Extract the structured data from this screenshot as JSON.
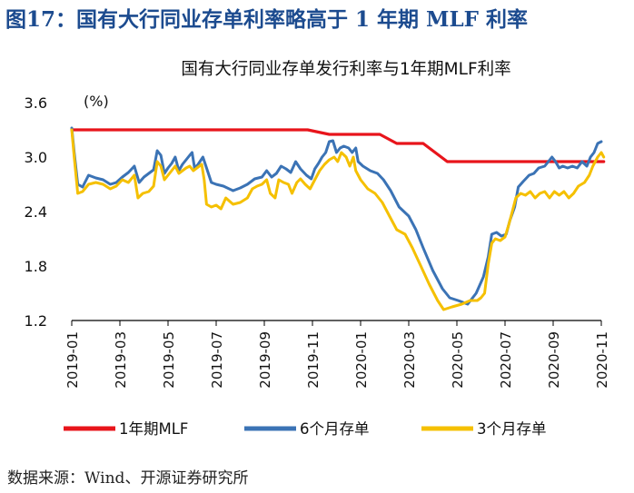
{
  "figure": {
    "title": "图17：国有大行同业存单利率略高于 1 年期 MLF 利率",
    "source": "数据来源：Wind、开源证券研究所"
  },
  "chart_data": {
    "type": "line",
    "title": "国有大行同业存单发行利率与1年期MLF利率",
    "unit_label": "(%)",
    "ylim": [
      1.2,
      3.6
    ],
    "yticks": [
      "1.2",
      "1.8",
      "2.4",
      "3.0",
      "3.6"
    ],
    "x_range": [
      "2019-01",
      "2020-11"
    ],
    "xticks": [
      "2019-01",
      "2019-03",
      "2019-05",
      "2019-07",
      "2019-09",
      "2019-11",
      "2020-01",
      "2020-03",
      "2020-05",
      "2020-07",
      "2020-09",
      "2020-11"
    ],
    "legend_position": "bottom",
    "series": [
      {
        "name": "1年期MLF",
        "color": "#e8141b",
        "points": [
          [
            0,
            3.3
          ],
          [
            9.8,
            3.3
          ],
          [
            10.7,
            3.25
          ],
          [
            12.8,
            3.25
          ],
          [
            13.5,
            3.15
          ],
          [
            14.6,
            3.15
          ],
          [
            15.6,
            2.95
          ],
          [
            22.1,
            2.95
          ]
        ]
      },
      {
        "name": "6个月存单",
        "color": "#3b73b5",
        "points": [
          [
            0,
            3.32
          ],
          [
            0.1,
            3.05
          ],
          [
            0.25,
            2.7
          ],
          [
            0.45,
            2.67
          ],
          [
            0.7,
            2.8
          ],
          [
            1.0,
            2.77
          ],
          [
            1.3,
            2.75
          ],
          [
            1.6,
            2.7
          ],
          [
            1.85,
            2.72
          ],
          [
            2.1,
            2.78
          ],
          [
            2.35,
            2.83
          ],
          [
            2.6,
            2.9
          ],
          [
            2.8,
            2.72
          ],
          [
            3.0,
            2.78
          ],
          [
            3.2,
            2.82
          ],
          [
            3.4,
            2.86
          ],
          [
            3.55,
            3.07
          ],
          [
            3.7,
            3.02
          ],
          [
            3.85,
            2.82
          ],
          [
            4.0,
            2.88
          ],
          [
            4.15,
            2.93
          ],
          [
            4.3,
            3.0
          ],
          [
            4.45,
            2.85
          ],
          [
            4.6,
            2.92
          ],
          [
            4.75,
            2.97
          ],
          [
            4.9,
            3.02
          ],
          [
            5.0,
            3.05
          ],
          [
            5.1,
            2.88
          ],
          [
            5.25,
            2.92
          ],
          [
            5.45,
            3.0
          ],
          [
            5.6,
            2.88
          ],
          [
            5.8,
            2.72
          ],
          [
            6.0,
            2.7
          ],
          [
            6.3,
            2.68
          ],
          [
            6.7,
            2.63
          ],
          [
            7.0,
            2.66
          ],
          [
            7.3,
            2.7
          ],
          [
            7.6,
            2.76
          ],
          [
            7.9,
            2.78
          ],
          [
            8.1,
            2.85
          ],
          [
            8.3,
            2.78
          ],
          [
            8.5,
            2.82
          ],
          [
            8.7,
            2.9
          ],
          [
            8.9,
            2.87
          ],
          [
            9.1,
            2.83
          ],
          [
            9.3,
            2.95
          ],
          [
            9.5,
            2.87
          ],
          [
            9.75,
            2.8
          ],
          [
            9.95,
            2.76
          ],
          [
            10.1,
            2.87
          ],
          [
            10.25,
            2.93
          ],
          [
            10.4,
            3.0
          ],
          [
            10.55,
            3.05
          ],
          [
            10.7,
            3.17
          ],
          [
            10.85,
            3.18
          ],
          [
            11.0,
            3.05
          ],
          [
            11.15,
            3.1
          ],
          [
            11.3,
            3.12
          ],
          [
            11.5,
            3.1
          ],
          [
            11.65,
            3.05
          ],
          [
            11.8,
            3.1
          ],
          [
            11.9,
            2.95
          ],
          [
            12.1,
            2.9
          ],
          [
            12.4,
            2.85
          ],
          [
            12.7,
            2.82
          ],
          [
            12.95,
            2.75
          ],
          [
            13.25,
            2.63
          ],
          [
            13.6,
            2.45
          ],
          [
            14.0,
            2.35
          ],
          [
            14.3,
            2.2
          ],
          [
            14.6,
            2.0
          ],
          [
            15.0,
            1.75
          ],
          [
            15.4,
            1.55
          ],
          [
            15.7,
            1.45
          ],
          [
            16.05,
            1.42
          ],
          [
            16.45,
            1.38
          ],
          [
            16.8,
            1.5
          ],
          [
            17.1,
            1.68
          ],
          [
            17.3,
            1.9
          ],
          [
            17.45,
            2.15
          ],
          [
            17.65,
            2.17
          ],
          [
            17.85,
            2.13
          ],
          [
            18.05,
            2.15
          ],
          [
            18.2,
            2.3
          ],
          [
            18.4,
            2.45
          ],
          [
            18.55,
            2.67
          ],
          [
            18.75,
            2.73
          ],
          [
            19.0,
            2.8
          ],
          [
            19.2,
            2.82
          ],
          [
            19.4,
            2.88
          ],
          [
            19.65,
            2.9
          ],
          [
            19.8,
            2.95
          ],
          [
            19.95,
            3.0
          ],
          [
            20.1,
            2.95
          ],
          [
            20.25,
            2.88
          ],
          [
            20.4,
            2.9
          ],
          [
            20.6,
            2.88
          ],
          [
            20.8,
            2.9
          ],
          [
            21.0,
            2.88
          ],
          [
            21.2,
            2.95
          ],
          [
            21.4,
            2.9
          ],
          [
            21.55,
            3.0
          ],
          [
            21.7,
            3.05
          ],
          [
            21.85,
            3.15
          ],
          [
            22.0,
            3.17
          ]
        ]
      },
      {
        "name": "3个月存单",
        "color": "#f5c000",
        "points": [
          [
            0,
            3.3
          ],
          [
            0.1,
            3.0
          ],
          [
            0.25,
            2.6
          ],
          [
            0.45,
            2.62
          ],
          [
            0.7,
            2.7
          ],
          [
            1.0,
            2.72
          ],
          [
            1.3,
            2.7
          ],
          [
            1.6,
            2.65
          ],
          [
            1.85,
            2.68
          ],
          [
            2.1,
            2.75
          ],
          [
            2.35,
            2.72
          ],
          [
            2.6,
            2.8
          ],
          [
            2.75,
            2.55
          ],
          [
            2.95,
            2.6
          ],
          [
            3.2,
            2.62
          ],
          [
            3.4,
            2.68
          ],
          [
            3.55,
            2.95
          ],
          [
            3.7,
            2.9
          ],
          [
            3.85,
            2.75
          ],
          [
            4.0,
            2.8
          ],
          [
            4.15,
            2.85
          ],
          [
            4.3,
            2.9
          ],
          [
            4.45,
            2.82
          ],
          [
            4.6,
            2.85
          ],
          [
            4.75,
            2.88
          ],
          [
            4.9,
            2.9
          ],
          [
            5.05,
            2.85
          ],
          [
            5.2,
            2.88
          ],
          [
            5.4,
            2.92
          ],
          [
            5.5,
            2.75
          ],
          [
            5.6,
            2.48
          ],
          [
            5.8,
            2.45
          ],
          [
            6.0,
            2.47
          ],
          [
            6.2,
            2.43
          ],
          [
            6.4,
            2.55
          ],
          [
            6.7,
            2.48
          ],
          [
            7.0,
            2.5
          ],
          [
            7.3,
            2.55
          ],
          [
            7.5,
            2.65
          ],
          [
            7.7,
            2.68
          ],
          [
            7.9,
            2.7
          ],
          [
            8.1,
            2.75
          ],
          [
            8.25,
            2.6
          ],
          [
            8.45,
            2.55
          ],
          [
            8.6,
            2.75
          ],
          [
            8.8,
            2.72
          ],
          [
            9.0,
            2.7
          ],
          [
            9.15,
            2.6
          ],
          [
            9.35,
            2.72
          ],
          [
            9.5,
            2.76
          ],
          [
            9.7,
            2.7
          ],
          [
            9.9,
            2.65
          ],
          [
            10.1,
            2.75
          ],
          [
            10.3,
            2.85
          ],
          [
            10.5,
            2.92
          ],
          [
            10.7,
            2.97
          ],
          [
            10.9,
            3.0
          ],
          [
            11.05,
            2.95
          ],
          [
            11.2,
            3.05
          ],
          [
            11.4,
            3.0
          ],
          [
            11.55,
            2.9
          ],
          [
            11.7,
            3.0
          ],
          [
            11.8,
            2.85
          ],
          [
            12.0,
            2.75
          ],
          [
            12.3,
            2.65
          ],
          [
            12.6,
            2.6
          ],
          [
            12.9,
            2.5
          ],
          [
            13.2,
            2.35
          ],
          [
            13.5,
            2.2
          ],
          [
            13.85,
            2.15
          ],
          [
            14.15,
            2.0
          ],
          [
            14.5,
            1.8
          ],
          [
            14.85,
            1.6
          ],
          [
            15.2,
            1.42
          ],
          [
            15.45,
            1.32
          ],
          [
            15.8,
            1.35
          ],
          [
            16.2,
            1.38
          ],
          [
            16.55,
            1.42
          ],
          [
            16.85,
            1.42
          ],
          [
            17.0,
            1.45
          ],
          [
            17.15,
            1.5
          ],
          [
            17.3,
            1.82
          ],
          [
            17.45,
            2.05
          ],
          [
            17.6,
            2.1
          ],
          [
            17.8,
            2.08
          ],
          [
            18.0,
            2.12
          ],
          [
            18.15,
            2.25
          ],
          [
            18.3,
            2.4
          ],
          [
            18.45,
            2.55
          ],
          [
            18.65,
            2.6
          ],
          [
            18.85,
            2.58
          ],
          [
            19.05,
            2.62
          ],
          [
            19.25,
            2.55
          ],
          [
            19.45,
            2.6
          ],
          [
            19.65,
            2.62
          ],
          [
            19.85,
            2.55
          ],
          [
            20.05,
            2.62
          ],
          [
            20.25,
            2.58
          ],
          [
            20.45,
            2.62
          ],
          [
            20.65,
            2.55
          ],
          [
            20.85,
            2.6
          ],
          [
            21.05,
            2.68
          ],
          [
            21.3,
            2.72
          ],
          [
            21.5,
            2.8
          ],
          [
            21.65,
            2.9
          ],
          [
            21.85,
            3.0
          ],
          [
            22.0,
            3.05
          ],
          [
            22.1,
            3.0
          ]
        ]
      }
    ]
  }
}
